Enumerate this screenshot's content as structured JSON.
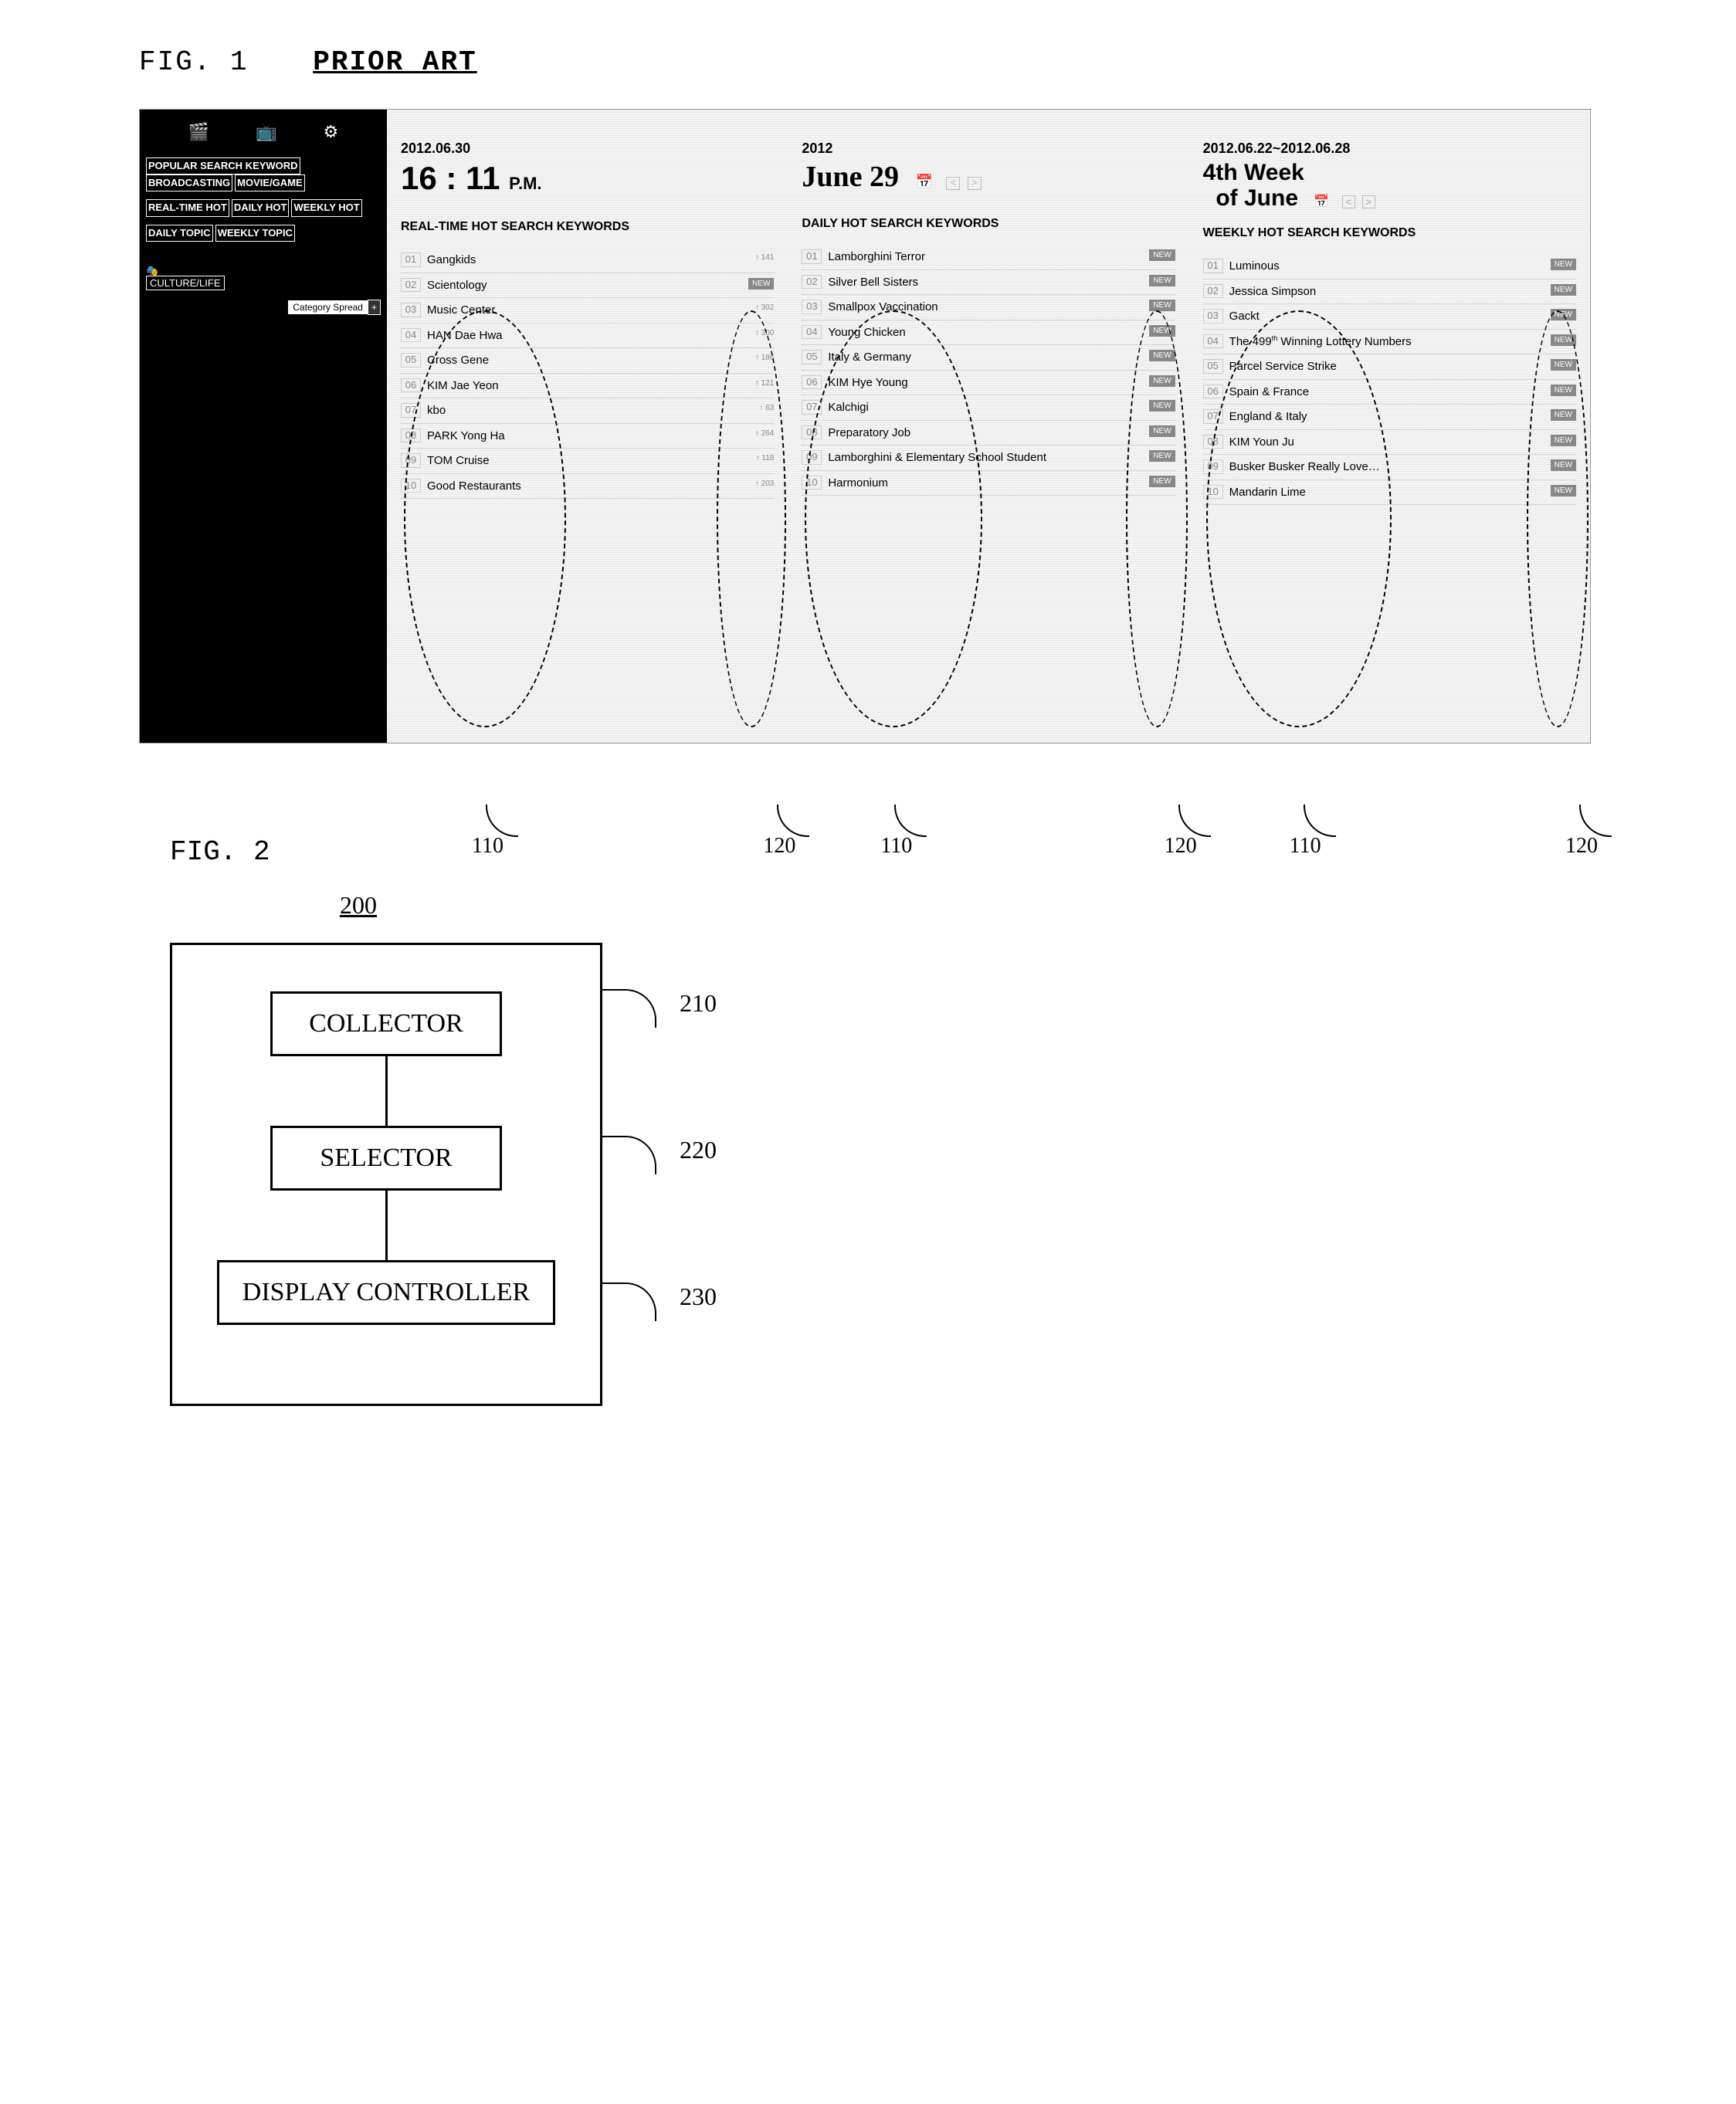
{
  "fig1_label": "FIG. 1",
  "prior_art": "PRIOR ART",
  "sidebar": {
    "tab_row1_a": "POPULAR SEARCH KEYWORD",
    "tab_row1_b": "BROADCASTING",
    "tab_row1_c": "MOVIE/GAME",
    "tab_row2_a": "REAL-TIME HOT",
    "tab_row2_b": "DAILY HOT",
    "tab_row2_c": "WEEKLY HOT",
    "tab_row3_a": "DAILY TOPIC",
    "tab_row3_b": "WEEKLY TOPIC",
    "culture": "CULTURE/LIFE",
    "catspread": "Category Spread",
    "plus": "+"
  },
  "panel1": {
    "date": "2012.06.30",
    "time_main": "16 : 11",
    "time_suffix": "P.M.",
    "heading": "REAL-TIME HOT SEARCH KEYWORDS",
    "items": [
      {
        "rank": "01",
        "kw": "Gangkids",
        "ind": "↑ 141"
      },
      {
        "rank": "02",
        "kw": "Scientology",
        "ind": "NEW"
      },
      {
        "rank": "03",
        "kw": "Music Center",
        "ind": "↑ 302"
      },
      {
        "rank": "04",
        "kw": "HAN Dae Hwa",
        "ind": "↑ 300"
      },
      {
        "rank": "05",
        "kw": "Cross Gene",
        "ind": "↑ 186"
      },
      {
        "rank": "06",
        "kw": "KIM Jae Yeon",
        "ind": "↑ 121"
      },
      {
        "rank": "07",
        "kw": "kbo",
        "ind": "↑ 63"
      },
      {
        "rank": "08",
        "kw": "PARK Yong Ha",
        "ind": "↑ 264"
      },
      {
        "rank": "09",
        "kw": "TOM Cruise",
        "ind": "↑ 118"
      },
      {
        "rank": "10",
        "kw": "Good Restaurants",
        "ind": "↑ 203"
      }
    ]
  },
  "panel2": {
    "date": "2012",
    "big": "June 29",
    "heading": "DAILY HOT SEARCH KEYWORDS",
    "items": [
      {
        "rank": "01",
        "kw": "Lamborghini Terror",
        "ind": "NEW"
      },
      {
        "rank": "02",
        "kw": "Silver Bell Sisters",
        "ind": "NEW"
      },
      {
        "rank": "03",
        "kw": "Smallpox Vaccination",
        "ind": "NEW"
      },
      {
        "rank": "04",
        "kw": "Young Chicken",
        "ind": "NEW"
      },
      {
        "rank": "05",
        "kw": "Italy & Germany",
        "ind": "NEW"
      },
      {
        "rank": "06",
        "kw": "KIM Hye Young",
        "ind": "NEW"
      },
      {
        "rank": "07",
        "kw": "Kalchigi",
        "ind": "NEW"
      },
      {
        "rank": "08",
        "kw": "Preparatory Job",
        "ind": "NEW"
      },
      {
        "rank": "09",
        "kw": "Lamborghini & Elementary School Student",
        "ind": "NEW"
      },
      {
        "rank": "10",
        "kw": "Harmonium",
        "ind": "NEW"
      }
    ]
  },
  "panel3": {
    "date": "2012.06.22~2012.06.28",
    "big_a": "4th Week",
    "big_b": "of June",
    "heading": "WEEKLY HOT SEARCH KEYWORDS",
    "items": [
      {
        "rank": "01",
        "kw": "Luminous",
        "ind": "NEW"
      },
      {
        "rank": "02",
        "kw": "Jessica Simpson",
        "ind": "NEW"
      },
      {
        "rank": "03",
        "kw": "Gackt",
        "ind": "NEW"
      },
      {
        "rank": "04",
        "kw": "The 499th Winning Lottery Numbers",
        "ind": "NEW",
        "sup": "th"
      },
      {
        "rank": "05",
        "kw": "Parcel Service Strike",
        "ind": "NEW"
      },
      {
        "rank": "06",
        "kw": "Spain & France",
        "ind": "NEW"
      },
      {
        "rank": "07",
        "kw": "England & Italy",
        "ind": "NEW"
      },
      {
        "rank": "08",
        "kw": "KIM Youn Ju",
        "ind": "NEW"
      },
      {
        "rank": "09",
        "kw": "Busker Busker Really Love…",
        "ind": "NEW"
      },
      {
        "rank": "10",
        "kw": "Mandarin Lime",
        "ind": "NEW"
      }
    ]
  },
  "callout_110": "110",
  "callout_120": "120",
  "fig2_label": "FIG. 2",
  "fig2_num": "200",
  "fig2_blocks": [
    {
      "label": "COLLECTOR",
      "num": "210"
    },
    {
      "label": "SELECTOR",
      "num": "220"
    },
    {
      "label": "DISPLAY CONTROLLER",
      "num": "230"
    }
  ]
}
